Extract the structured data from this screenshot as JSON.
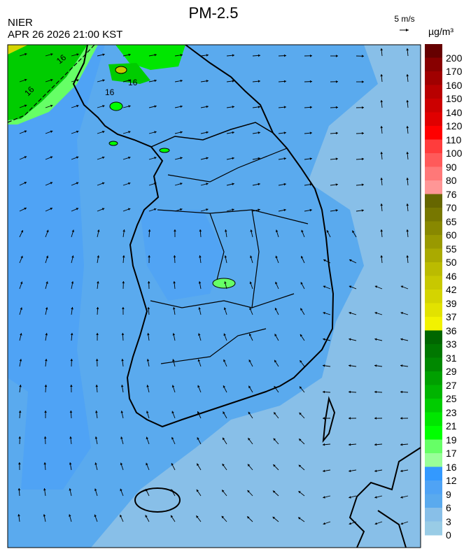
{
  "header": {
    "title": "PM-2.5",
    "agency": "NIER",
    "timestamp": "APR 26 2026 21:00 KST",
    "wind_reference": "5 m/s",
    "unit": "µg/m³"
  },
  "map": {
    "variable": "PM-2.5 concentration",
    "contour_labels": [
      "16",
      "16",
      "16",
      "16"
    ],
    "wind_vectors": true
  },
  "legend": {
    "labels": [
      "200",
      "170",
      "160",
      "150",
      "140",
      "120",
      "110",
      "100",
      "90",
      "80",
      "76",
      "70",
      "65",
      "60",
      "55",
      "50",
      "46",
      "42",
      "39",
      "37",
      "36",
      "33",
      "31",
      "29",
      "27",
      "25",
      "23",
      "21",
      "19",
      "17",
      "16",
      "12",
      "9",
      "6",
      "3",
      "0"
    ],
    "colors": [
      "#660000",
      "#880000",
      "#a00000",
      "#b80000",
      "#cc0000",
      "#e00000",
      "#ff0000",
      "#ff3c3c",
      "#ff5a5a",
      "#ff7878",
      "#ff9696",
      "#666600",
      "#777700",
      "#888800",
      "#999900",
      "#aaaa00",
      "#bbbb00",
      "#c8c800",
      "#d4d400",
      "#e2e200",
      "#f2f200",
      "#006600",
      "#007700",
      "#008800",
      "#00a000",
      "#00b400",
      "#00cc00",
      "#00e600",
      "#00ff00",
      "#66ff66",
      "#99ff99",
      "#3399ff",
      "#4fa3f5",
      "#5aaaee",
      "#88bfe8",
      "#99cce6"
    ]
  }
}
